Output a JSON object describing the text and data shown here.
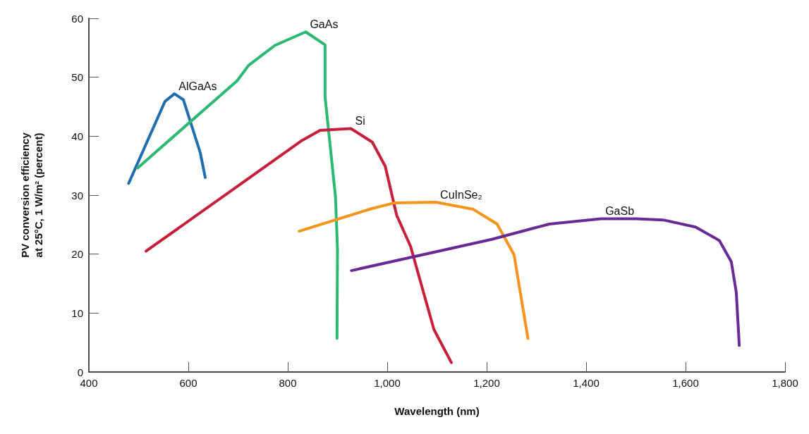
{
  "chart_data": {
    "type": "line",
    "xlabel": "Wavelength (nm)",
    "ylabel": "PV conversion efficiency\nat 25°C, 1 W/m² (percent)",
    "xlim": [
      400,
      1800
    ],
    "xticks": [
      400,
      600,
      800,
      {
        "value": 1000,
        "label": "1,000"
      },
      {
        "value": 1200,
        "label": "1,200"
      },
      {
        "value": 1400,
        "label": "1,400"
      },
      {
        "value": 1600,
        "label": "1,600"
      },
      {
        "value": 1800,
        "label": "1,800"
      }
    ],
    "ylim": [
      0,
      60
    ],
    "yticks": [
      0,
      10,
      20,
      30,
      40,
      50,
      60
    ],
    "grid": false,
    "legend": false,
    "marker": "none",
    "line_style": "solid",
    "series": [
      {
        "name": "AlGaAs",
        "color": "#1f6fb0",
        "x": [
          480,
          553,
          572,
          590,
          624,
          634
        ],
        "values": [
          32,
          45.9,
          47.2,
          46.2,
          37.2,
          33
        ]
      },
      {
        "name": "GaAs",
        "color": "#2db873",
        "x": [
          498,
          698,
          721,
          774,
          836,
          875,
          875,
          896,
          900,
          899
        ],
        "values": [
          34.6,
          49.4,
          52.0,
          55.4,
          57.7,
          55.5,
          46.7,
          29.7,
          20.8,
          5.7
        ]
      },
      {
        "name": "Si",
        "color": "#c8203a",
        "x": [
          515,
          829,
          865,
          927,
          970,
          996,
          1019,
          1047,
          1094,
          1129
        ],
        "values": [
          20.5,
          39.3,
          41.0,
          41.3,
          39.0,
          34.9,
          26.6,
          21.3,
          7.2,
          1.6
        ]
      },
      {
        "name": "CuInSe₂",
        "color": "#f7941d",
        "x": [
          823,
          968,
          1015,
          1098,
          1173,
          1221,
          1255,
          1283
        ],
        "values": [
          23.9,
          27.7,
          28.7,
          28.8,
          27.6,
          25.1,
          19.9,
          5.7
        ]
      },
      {
        "name": "GaSb",
        "color": "#6a2a96",
        "x": [
          928,
          1210,
          1326,
          1430,
          1500,
          1555,
          1620,
          1668,
          1692,
          1702,
          1708
        ],
        "values": [
          17.2,
          22.5,
          25.1,
          26.0,
          26.0,
          25.8,
          24.6,
          22.3,
          18.7,
          13.5,
          4.5
        ]
      }
    ]
  }
}
